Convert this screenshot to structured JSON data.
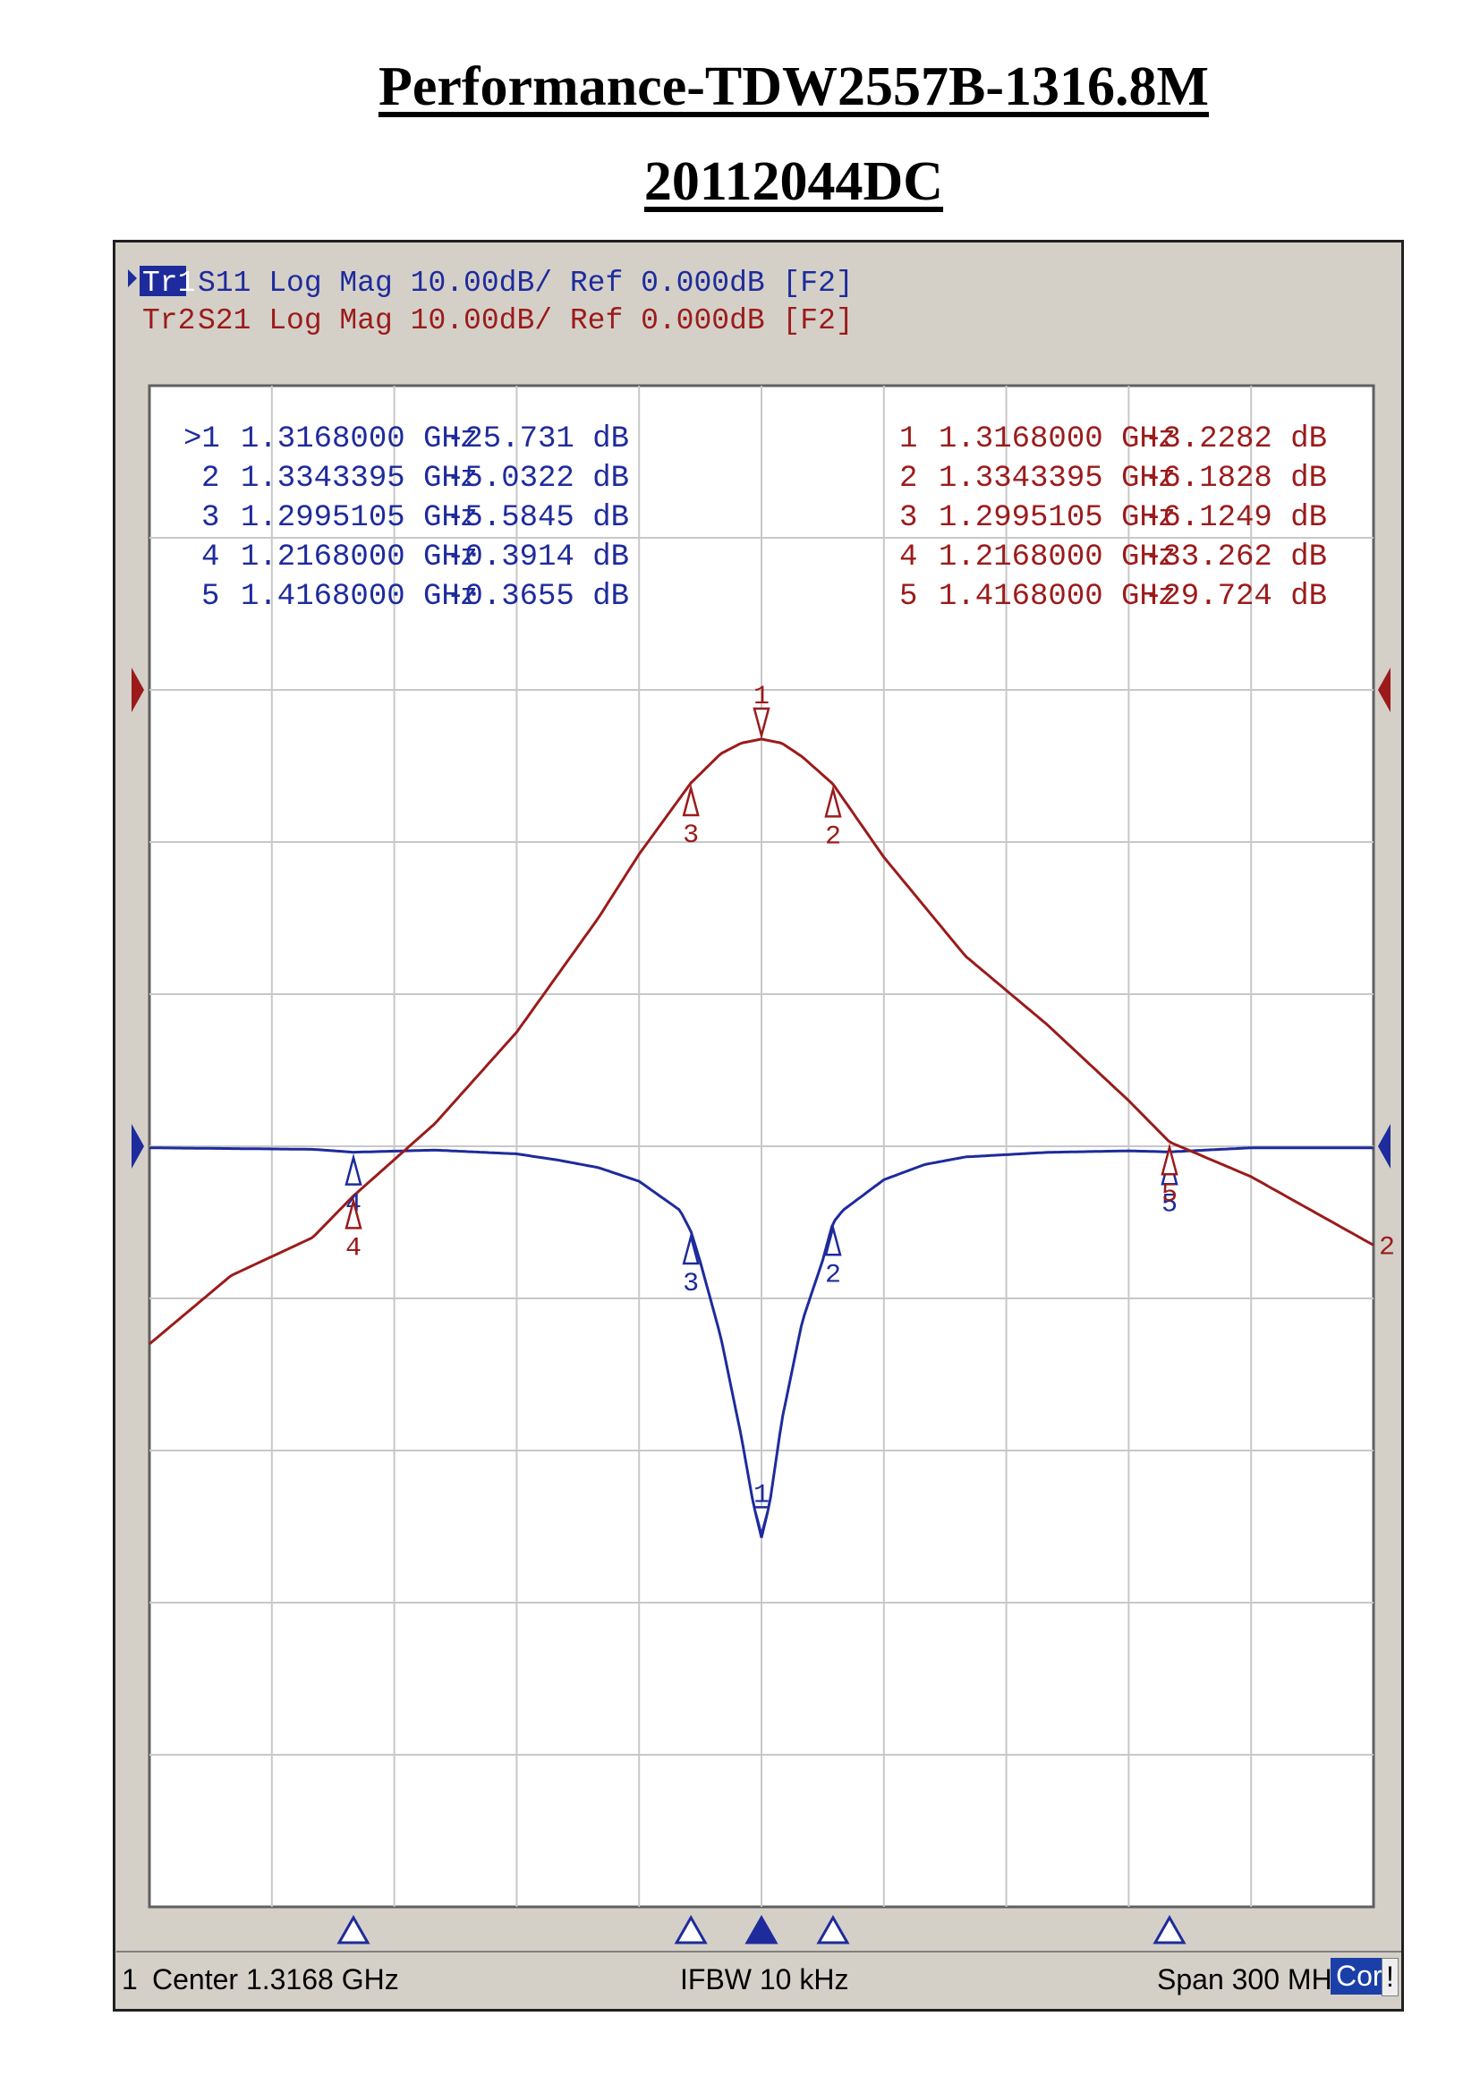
{
  "page": {
    "title": "Performance-TDW2557B-1316.8M",
    "subtitle": "20112044DC"
  },
  "colors": {
    "s11": "#1e2b9c",
    "s21": "#9b1b1b",
    "grid": "#c8c8c8",
    "plot_bg": "#ffffff",
    "frame_bg": "#d4d0c8"
  },
  "traces": [
    {
      "id": "Tr1",
      "text": "S11 Log Mag 10.00dB/ Ref 0.000dB [F2]"
    },
    {
      "id": "Tr2",
      "text": "S21 Log Mag 10.00dB/ Ref 0.000dB [F2]"
    }
  ],
  "marker_tables": {
    "s11": [
      {
        "marker": ">1",
        "freq": "1.3168000 GHz",
        "value": "-25.731 dB"
      },
      {
        "marker": "2",
        "freq": "1.3343395 GHz",
        "value": "-5.0322 dB"
      },
      {
        "marker": "3",
        "freq": "1.2995105 GHz",
        "value": "-5.5845 dB"
      },
      {
        "marker": "4",
        "freq": "1.2168000 GHz",
        "value": "-0.3914 dB"
      },
      {
        "marker": "5",
        "freq": "1.4168000 GHz",
        "value": "-0.3655 dB"
      }
    ],
    "s21": [
      {
        "marker": "1",
        "freq": "1.3168000 GHz",
        "value": "-3.2282 dB"
      },
      {
        "marker": "2",
        "freq": "1.3343395 GHz",
        "value": "-6.1828 dB"
      },
      {
        "marker": "3",
        "freq": "1.2995105 GHz",
        "value": "-6.1249 dB"
      },
      {
        "marker": "4",
        "freq": "1.2168000 GHz",
        "value": "-33.262 dB"
      },
      {
        "marker": "5",
        "freq": "1.4168000 GHz",
        "value": "-29.724 dB"
      }
    ]
  },
  "status_bar": {
    "channel": "1",
    "center": "Center 1.3168 GHz",
    "ifbw": "IFBW 10 kHz",
    "span": "Span 300 MHz",
    "cor": "Cor",
    "excl": "!"
  },
  "chart_data": {
    "type": "line",
    "xlim": [
      1.1668,
      1.4668
    ],
    "ylim": [
      -100,
      0
    ],
    "x_unit": "GHz",
    "y_unit": "dB",
    "grid": true,
    "x_divisions": 10,
    "y_divisions": 10,
    "series": [
      {
        "name": "S11",
        "points": [
          [
            1.1668,
            -0.1
          ],
          [
            1.2068,
            -0.2
          ],
          [
            1.2168,
            -0.39
          ],
          [
            1.2368,
            -0.25
          ],
          [
            1.2568,
            -0.5
          ],
          [
            1.2668,
            -0.9
          ],
          [
            1.2768,
            -1.4
          ],
          [
            1.2868,
            -2.3
          ],
          [
            1.2968,
            -4.2
          ],
          [
            1.2995,
            -5.58
          ],
          [
            1.3018,
            -7.6
          ],
          [
            1.3068,
            -12.5
          ],
          [
            1.3118,
            -19
          ],
          [
            1.3148,
            -23.5
          ],
          [
            1.3168,
            -25.73
          ],
          [
            1.3188,
            -23.5
          ],
          [
            1.3218,
            -18
          ],
          [
            1.3268,
            -11.5
          ],
          [
            1.3318,
            -7.5
          ],
          [
            1.3343,
            -5.03
          ],
          [
            1.3368,
            -4.2
          ],
          [
            1.3468,
            -2.2
          ],
          [
            1.3568,
            -1.2
          ],
          [
            1.3668,
            -0.7
          ],
          [
            1.3868,
            -0.4
          ],
          [
            1.4068,
            -0.3
          ],
          [
            1.4168,
            -0.37
          ],
          [
            1.4368,
            -0.1
          ],
          [
            1.4668,
            -0.1
          ]
        ]
      },
      {
        "name": "S21",
        "points": [
          [
            1.1668,
            -43
          ],
          [
            1.1868,
            -38.5
          ],
          [
            1.2068,
            -36
          ],
          [
            1.2168,
            -33.26
          ],
          [
            1.2368,
            -28.5
          ],
          [
            1.2568,
            -22.5
          ],
          [
            1.2768,
            -15
          ],
          [
            1.2868,
            -10.8
          ],
          [
            1.2995,
            -6.12
          ],
          [
            1.3068,
            -4.2
          ],
          [
            1.3118,
            -3.5
          ],
          [
            1.3168,
            -3.23
          ],
          [
            1.3218,
            -3.5
          ],
          [
            1.3268,
            -4.4
          ],
          [
            1.3343,
            -6.18
          ],
          [
            1.3468,
            -11
          ],
          [
            1.3668,
            -17.5
          ],
          [
            1.3868,
            -22
          ],
          [
            1.4068,
            -27
          ],
          [
            1.4168,
            -29.72
          ],
          [
            1.4368,
            -32
          ],
          [
            1.4668,
            -36.5
          ]
        ]
      }
    ],
    "markers": [
      {
        "n": "1",
        "x": 1.3168
      },
      {
        "n": "2",
        "x": 1.3343395
      },
      {
        "n": "3",
        "x": 1.2995105
      },
      {
        "n": "4",
        "x": 1.2168
      },
      {
        "n": "5",
        "x": 1.4168
      }
    ]
  }
}
